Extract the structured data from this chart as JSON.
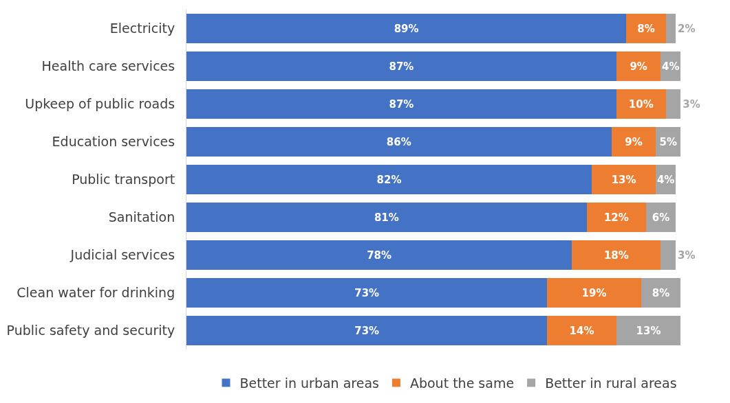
{
  "chart_data": {
    "type": "bar",
    "orientation": "horizontal",
    "stacked": true,
    "legend": "bottom",
    "categories": [
      "Electricity",
      "Health care services",
      "Upkeep of public roads",
      "Education services",
      "Public transport",
      "Sanitation",
      "Judicial services",
      "Clean water for drinking",
      "Public safety and security"
    ],
    "series": [
      {
        "name": "Better in urban areas",
        "color": "#4472c4",
        "values": [
          89,
          87,
          87,
          86,
          82,
          81,
          78,
          73,
          73
        ],
        "value_labels": [
          "89%",
          "87%",
          "87%",
          "86%",
          "82%",
          "81%",
          "78%",
          "73%",
          "73%"
        ]
      },
      {
        "name": "About the same",
        "color": "#ed7d31",
        "values": [
          8,
          9,
          10,
          9,
          13,
          12,
          18,
          19,
          14
        ],
        "value_labels": [
          "8%",
          "9%",
          "10%",
          "9%",
          "13%",
          "12%",
          "18%",
          "19%",
          "14%"
        ]
      },
      {
        "name": "Better in rural areas",
        "color": "#a5a5a5",
        "values": [
          2,
          4,
          3,
          5,
          4,
          6,
          3,
          8,
          13
        ],
        "value_labels": [
          "2%",
          "4%",
          "3%",
          "5%",
          "4%",
          "6%",
          "3%",
          "8%",
          "13%"
        ]
      }
    ]
  }
}
